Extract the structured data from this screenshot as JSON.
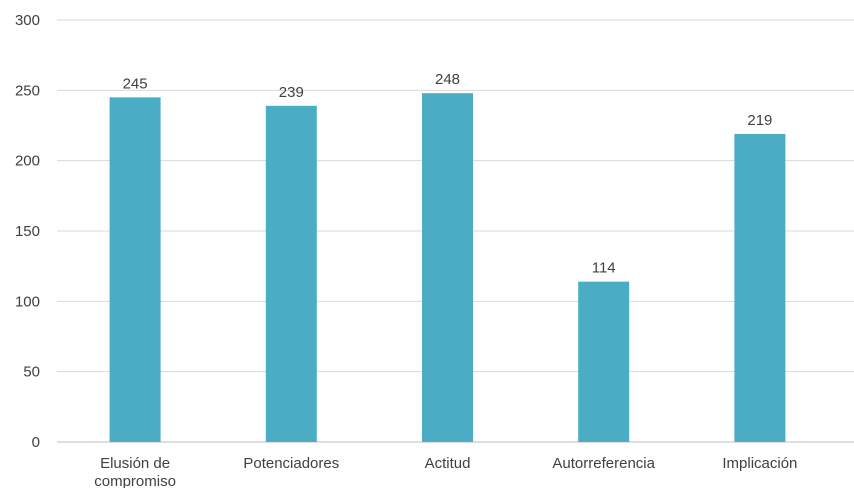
{
  "chart_data": {
    "type": "bar",
    "categories": [
      "Elusión de compromiso",
      "Potenciadores",
      "Actitud",
      "Autorreferencia",
      "Implicación"
    ],
    "category_lines": [
      [
        "Elusión de",
        "compromiso"
      ],
      [
        "Potenciadores"
      ],
      [
        "Actitud"
      ],
      [
        "Autorreferencia"
      ],
      [
        "Implicación"
      ]
    ],
    "values": [
      245,
      239,
      248,
      114,
      219
    ],
    "data_labels": [
      "245",
      "239",
      "248",
      "114",
      "219"
    ],
    "yticks": [
      0,
      50,
      100,
      150,
      200,
      250,
      300
    ],
    "ytick_labels": [
      "0",
      "50",
      "100",
      "150",
      "200",
      "250",
      "300"
    ],
    "ylim": [
      0,
      300
    ],
    "grid": true,
    "legend": "none",
    "title": "",
    "xlabel": "",
    "ylabel": "",
    "bar_color": "#4bacc6"
  }
}
